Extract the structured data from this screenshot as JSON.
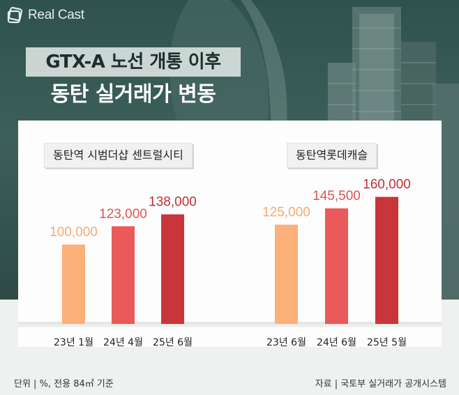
{
  "brand": {
    "name": "Real Cast"
  },
  "header": {
    "title_line1": "GTX-A 노선 개통 이후",
    "title_line2": "동탄 실거래가 변동"
  },
  "colors": {
    "bar_light": "#fcb07a",
    "bar_mid": "#ea5a5a",
    "bar_dark": "#c8363b",
    "label_light": "#f7a96e",
    "label_mid": "#e25252",
    "label_dark": "#c13035"
  },
  "chart_data": [
    {
      "type": "bar",
      "title": "동탄역 시범더샵 센트럴시티",
      "categories": [
        "23년 1월",
        "24년 4월",
        "25년 6월"
      ],
      "values": [
        100000,
        123000,
        138000
      ],
      "value_labels": [
        "100,000",
        "123,000",
        "138,000"
      ]
    },
    {
      "type": "bar",
      "title": "동탄역롯데캐슬",
      "categories": [
        "23년 6월",
        "24년 6월",
        "25년 5월"
      ],
      "values": [
        125000,
        145500,
        160000
      ],
      "value_labels": [
        "125,000",
        "145,500",
        "160,000"
      ]
    }
  ],
  "footer": {
    "unit_note": "단위 | %, 전용 84㎡ 기준",
    "source_note": "자료 | 국토부 실거래가 공개시스템"
  }
}
